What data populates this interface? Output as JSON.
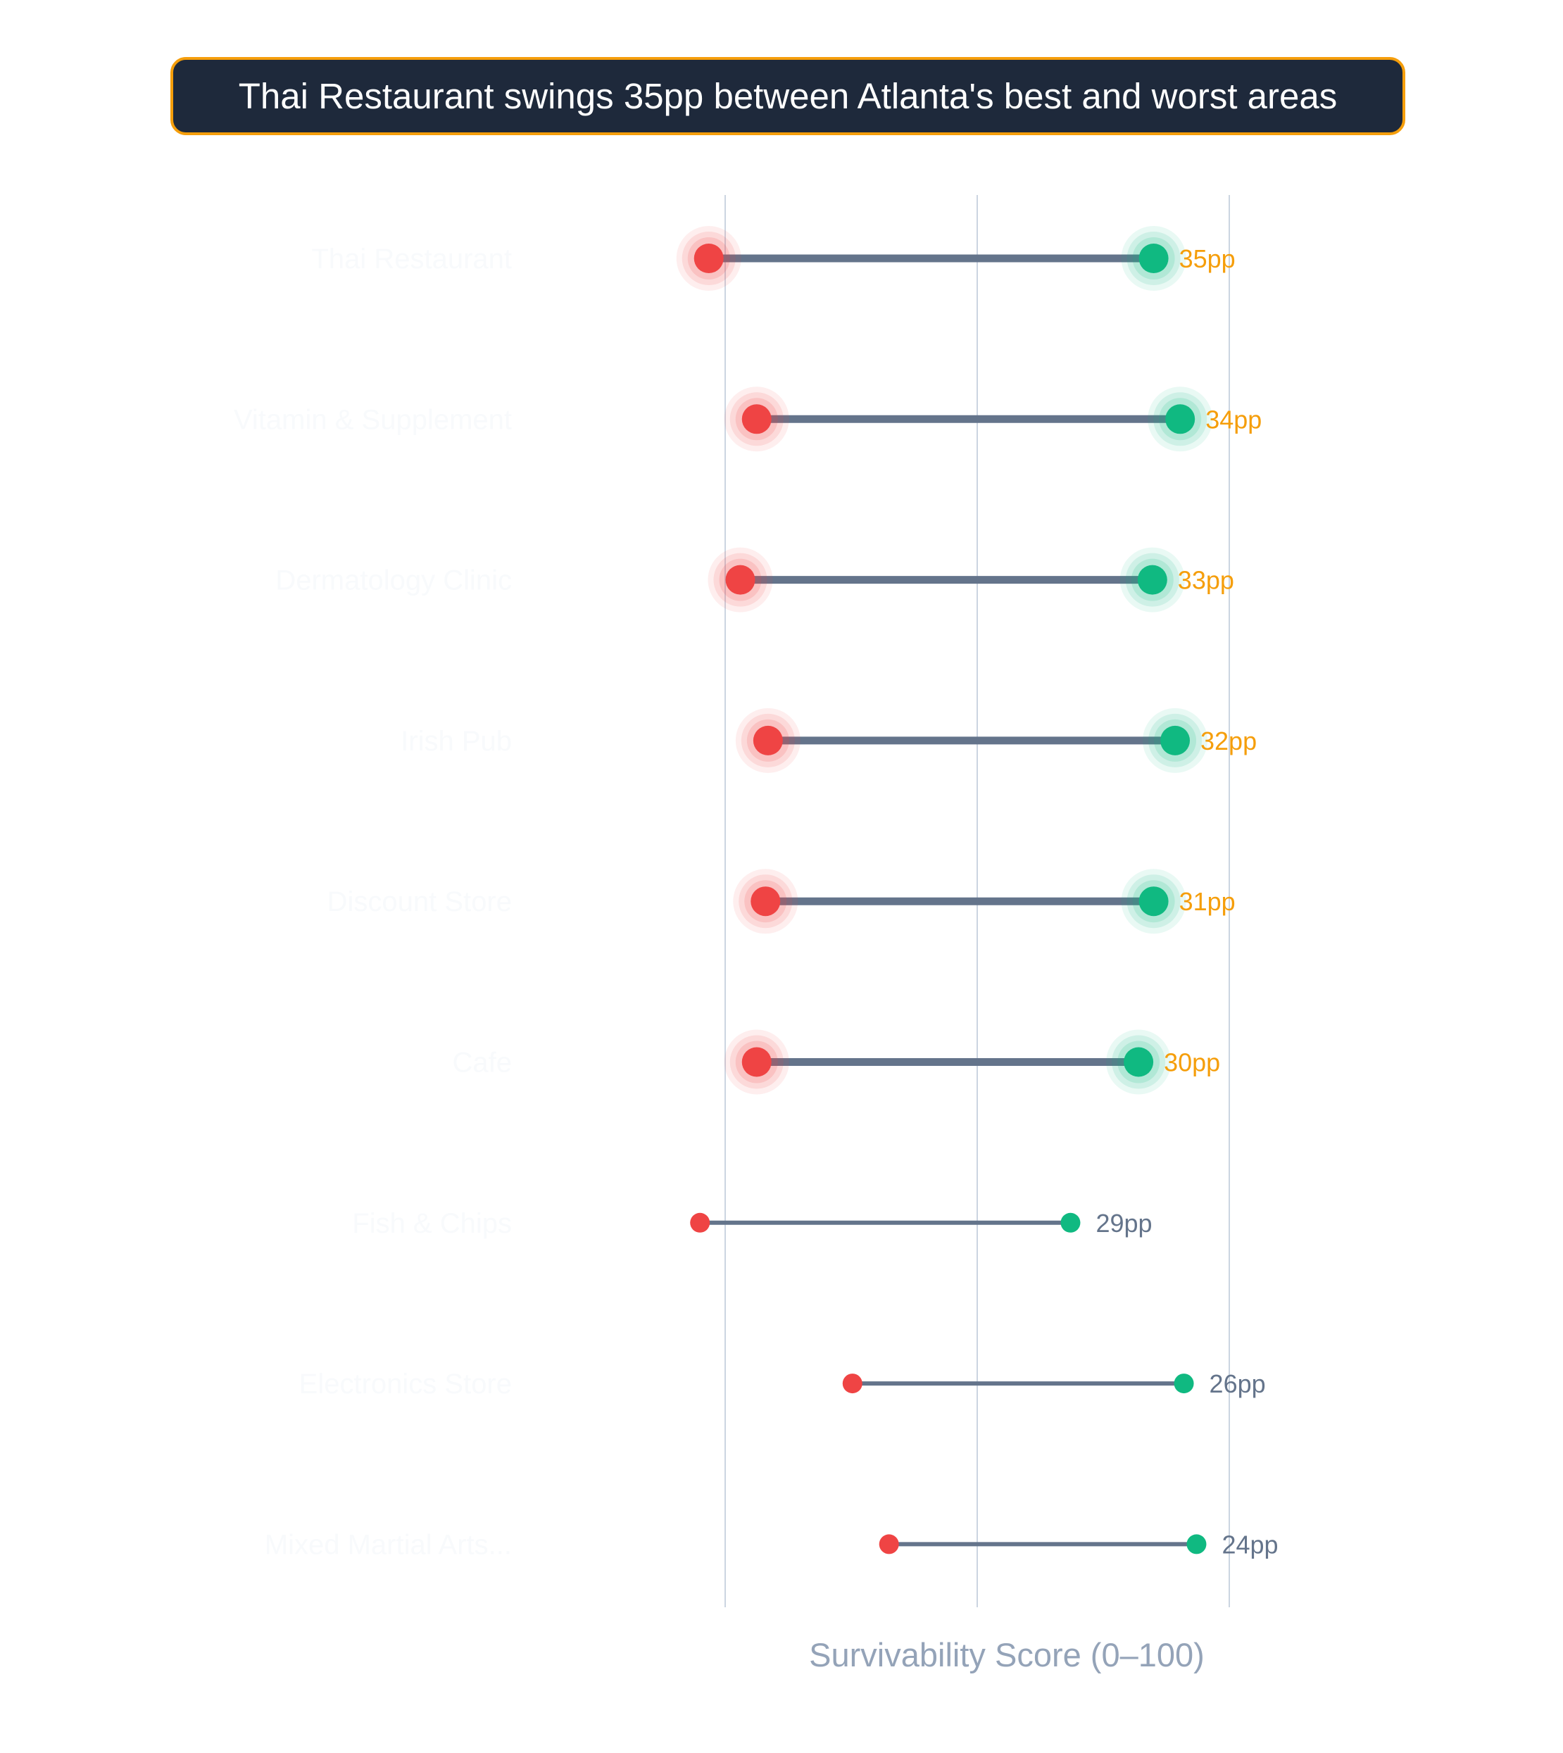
{
  "colors": {
    "title_bg": "#1e293b",
    "title_border": "#f59e0b",
    "worst": "#ef4444",
    "best": "#10b981",
    "connector": "#64748b",
    "highlight_label": "#f59e0b",
    "normal_label": "#64748b",
    "category_label": "#f8fafc",
    "axis_title": "#94a3b8",
    "grid": "#cbd5e1"
  },
  "chart_data": {
    "type": "dumbbell",
    "title": "Thai Restaurant swings 35pp between Atlanta's best and worst areas",
    "xlabel": "Survivability Score (0–100)",
    "xlim": [
      15,
      70
    ],
    "gridlines": [
      20,
      40,
      60
    ],
    "legend": "none",
    "highlight_top": 6,
    "categories": [
      "Thai Restaurant",
      "Vitamin & Supplement",
      "Dermatology Clinic",
      "Irish Pub",
      "Discount Store",
      "Cafe",
      "Fish & Chips",
      "Electronics Store",
      "Mixed Martial Arts..."
    ],
    "series": [
      {
        "name": "worst",
        "values": [
          18.7,
          22.5,
          21.2,
          23.4,
          23.2,
          22.5,
          18.0,
          30.1,
          33.0
        ]
      },
      {
        "name": "best",
        "values": [
          54.0,
          56.1,
          53.9,
          55.7,
          54.0,
          52.8,
          47.4,
          56.4,
          57.4
        ]
      }
    ],
    "gap_labels": [
      "35pp",
      "34pp",
      "33pp",
      "32pp",
      "31pp",
      "30pp",
      "29pp",
      "26pp",
      "24pp"
    ]
  }
}
